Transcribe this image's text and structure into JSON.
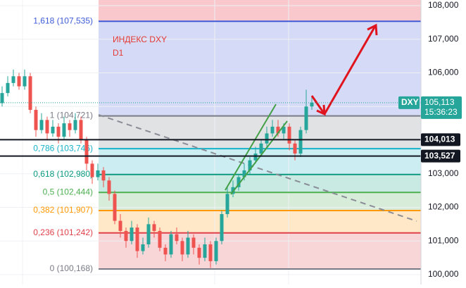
{
  "chart_data": {
    "type": "candlestick",
    "title": "ИНДЕКС DXY",
    "subtitle": "D1",
    "title_color": "#e53935",
    "up_color": "#26a69a",
    "down_color": "#ef5350",
    "ylim": [
      100,
      108
    ],
    "yticks": [
      {
        "value": 100,
        "label": "100,000"
      },
      {
        "value": 101,
        "label": "101,000"
      },
      {
        "value": 102,
        "label": "102,000"
      },
      {
        "value": 103,
        "label": "103,000"
      },
      {
        "value": 104,
        "label": "104,000"
      },
      {
        "value": 105,
        "label": "105,000"
      },
      {
        "value": 106,
        "label": "106,000"
      },
      {
        "value": 107,
        "label": "107,000"
      },
      {
        "value": 108,
        "label": "108,000"
      }
    ],
    "grid": true,
    "fib_levels": [
      {
        "label": "1,618 (107,535)",
        "value": 107.535,
        "color": "#3f5bd8"
      },
      {
        "label": "1 (104,721)",
        "value": 104.721,
        "color": "#787b86"
      },
      {
        "label": "0,786 (103,746)",
        "value": 103.746,
        "color": "#17b3c9"
      },
      {
        "label": "0,618 (102,980)",
        "value": 102.98,
        "color": "#089981"
      },
      {
        "label": "0,5 (102,444)",
        "value": 102.444,
        "color": "#4caf50"
      },
      {
        "label": "0,382 (101,907)",
        "value": 101.907,
        "color": "#ff9800"
      },
      {
        "label": "0,236 (101,242)",
        "value": 101.242,
        "color": "#e0404a"
      },
      {
        "label": "0 (100,168)",
        "value": 100.168,
        "color": "#787b86"
      }
    ],
    "price_lines": [
      {
        "label": "104,013",
        "value": 104.013
      },
      {
        "label": "103,527",
        "value": 103.527
      }
    ],
    "last_price": {
      "symbol": "DXY",
      "label": "105,113",
      "value": 105.113,
      "time": "15:36:23",
      "color": "#26a69a"
    },
    "candles": [
      [
        105.1,
        105.6,
        105.0,
        105.4
      ],
      [
        105.4,
        105.9,
        105.3,
        105.7
      ],
      [
        105.7,
        106.1,
        105.6,
        105.9
      ],
      [
        105.9,
        106.0,
        105.5,
        105.6
      ],
      [
        105.6,
        106.1,
        105.5,
        105.9
      ],
      [
        105.9,
        106.0,
        104.8,
        104.9
      ],
      [
        104.9,
        105.0,
        104.1,
        104.3
      ],
      [
        104.3,
        104.8,
        104.2,
        104.6
      ],
      [
        104.6,
        104.7,
        104.0,
        104.2
      ],
      [
        104.2,
        104.6,
        104.1,
        104.4
      ],
      [
        104.4,
        104.5,
        103.9,
        104.1
      ],
      [
        104.1,
        104.7,
        104.0,
        104.5
      ],
      [
        104.5,
        104.6,
        104.1,
        104.3
      ],
      [
        104.3,
        104.8,
        104.2,
        104.6
      ],
      [
        104.6,
        104.7,
        103.9,
        104.0
      ],
      [
        104.0,
        104.1,
        103.1,
        103.3
      ],
      [
        103.3,
        103.4,
        102.7,
        102.9
      ],
      [
        102.9,
        103.3,
        102.8,
        103.1
      ],
      [
        103.1,
        103.2,
        102.6,
        102.8
      ],
      [
        102.8,
        102.9,
        102.2,
        102.4
      ],
      [
        102.4,
        102.5,
        101.5,
        101.6
      ],
      [
        101.6,
        101.8,
        101.1,
        101.3
      ],
      [
        101.3,
        101.4,
        100.8,
        101.0
      ],
      [
        101.0,
        101.6,
        100.9,
        101.4
      ],
      [
        101.4,
        101.5,
        100.5,
        100.7
      ],
      [
        100.7,
        101.1,
        100.6,
        100.9
      ],
      [
        100.9,
        101.7,
        100.8,
        101.5
      ],
      [
        101.5,
        101.6,
        101.1,
        101.3
      ],
      [
        101.3,
        101.4,
        100.7,
        100.8
      ],
      [
        100.8,
        100.9,
        100.4,
        100.6
      ],
      [
        100.6,
        101.3,
        100.5,
        101.2
      ],
      [
        101.2,
        101.4,
        100.9,
        101.0
      ],
      [
        101.0,
        101.1,
        100.4,
        100.6
      ],
      [
        100.6,
        101.3,
        100.5,
        101.1
      ],
      [
        101.1,
        101.2,
        100.6,
        100.8
      ],
      [
        100.8,
        100.9,
        100.3,
        100.5
      ],
      [
        100.5,
        101.1,
        100.4,
        100.9
      ],
      [
        100.9,
        101.0,
        100.2,
        100.4
      ],
      [
        100.4,
        101.1,
        100.3,
        101.0
      ],
      [
        101.0,
        101.9,
        100.9,
        101.8
      ],
      [
        101.8,
        102.6,
        101.7,
        102.4
      ],
      [
        102.4,
        102.8,
        102.3,
        102.6
      ],
      [
        102.6,
        103.0,
        102.5,
        102.9
      ],
      [
        102.9,
        103.3,
        102.8,
        103.1
      ],
      [
        103.1,
        103.5,
        103.0,
        103.4
      ],
      [
        103.4,
        103.8,
        103.3,
        103.6
      ],
      [
        103.6,
        104.0,
        103.5,
        103.9
      ],
      [
        103.9,
        104.4,
        103.8,
        104.2
      ],
      [
        104.2,
        104.6,
        104.1,
        104.4
      ],
      [
        104.4,
        104.6,
        104.1,
        104.2
      ],
      [
        104.2,
        104.5,
        104.0,
        104.4
      ],
      [
        104.4,
        104.5,
        103.7,
        103.9
      ],
      [
        103.9,
        104.0,
        103.4,
        103.6
      ],
      [
        103.6,
        104.4,
        103.5,
        104.3
      ],
      [
        104.3,
        105.5,
        104.2,
        105.0
      ],
      [
        105.0,
        105.3,
        104.9,
        105.113
      ]
    ]
  }
}
